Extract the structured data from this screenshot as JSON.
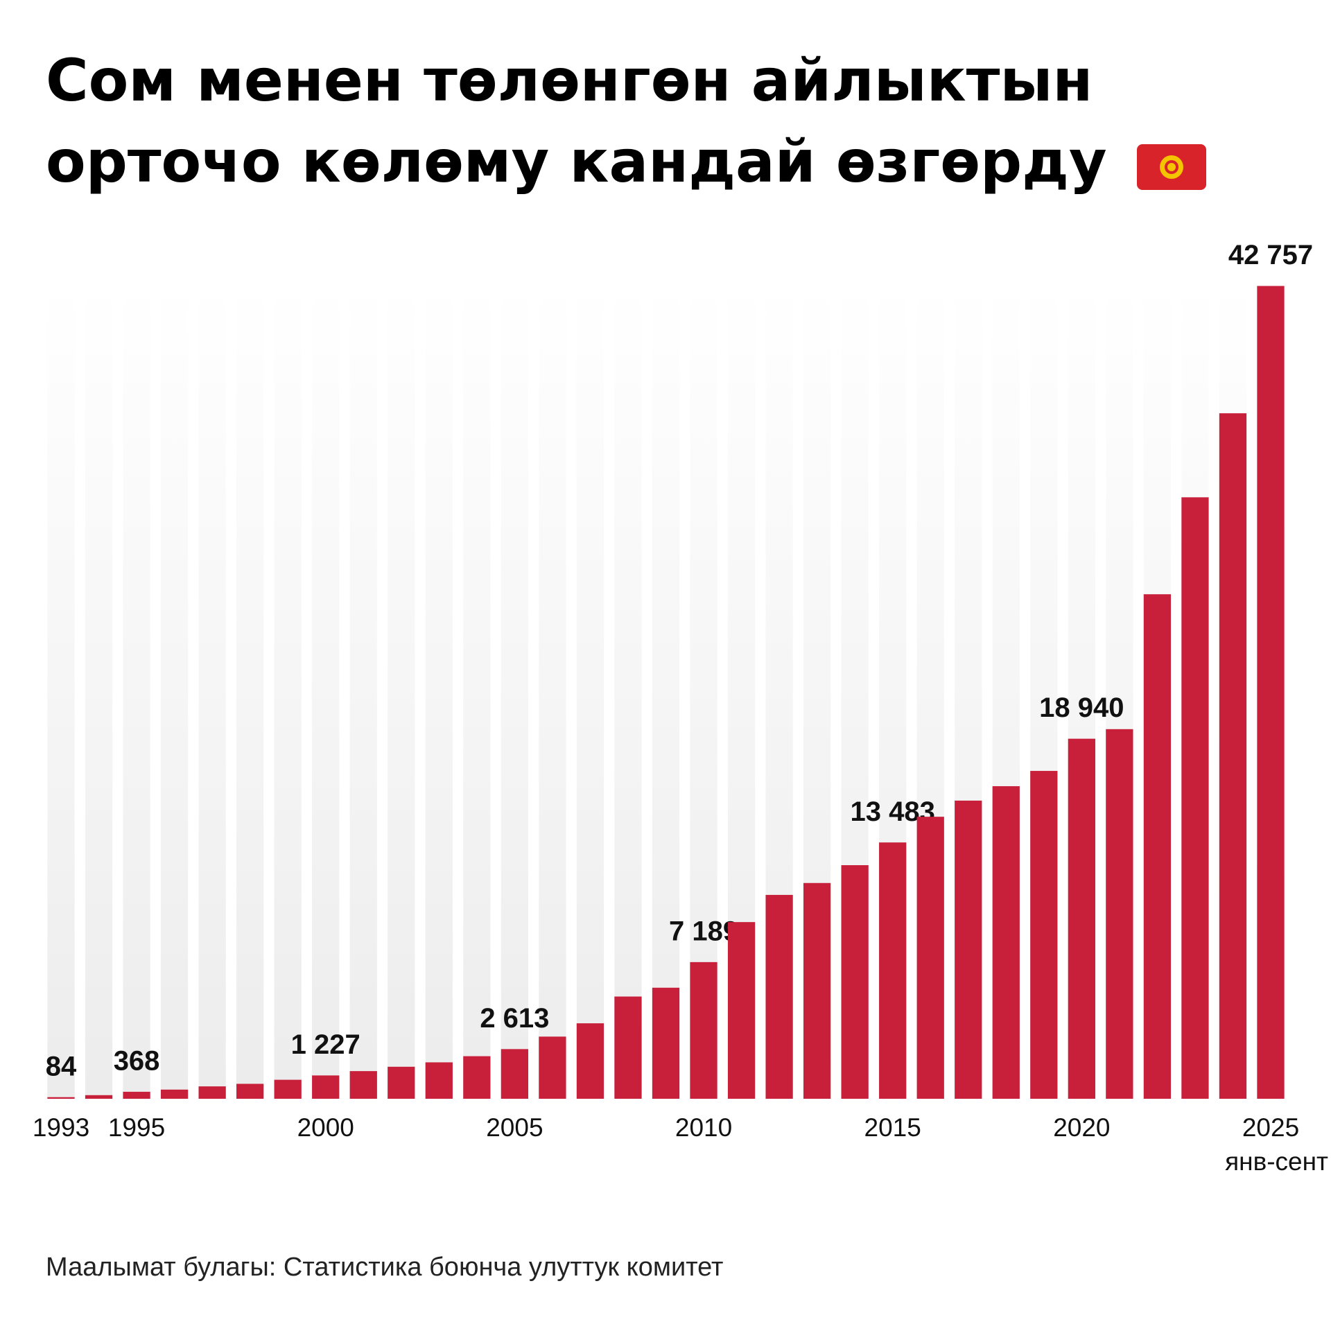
{
  "chart_data": {
    "type": "bar",
    "title": [
      "Сом менен төлөнгөн айлыктын",
      "орточо көлөму кандай өзгөрду"
    ],
    "categories": [
      "1993",
      null,
      "1995",
      null,
      null,
      null,
      null,
      "2000",
      null,
      null,
      null,
      null,
      "2005",
      null,
      null,
      null,
      null,
      "2010",
      null,
      null,
      null,
      null,
      "2015",
      null,
      null,
      null,
      null,
      "2020",
      null,
      null,
      null,
      null,
      "2025"
    ],
    "category_note": "янв-сент",
    "values": [
      84,
      190,
      368,
      482,
      652,
      786,
      999,
      1227,
      1455,
      1684,
      1916,
      2240,
      2613,
      3270,
      3970,
      5378,
      5842,
      7189,
      9294,
      10724,
      11350,
      12288,
      13483,
      14835,
      15684,
      16443,
      17247,
      18940,
      19443,
      26540,
      31640,
      36060,
      42757
    ],
    "value_labels": [
      "84",
      null,
      "368",
      null,
      null,
      null,
      null,
      "1 227",
      null,
      null,
      null,
      null,
      "2 613",
      null,
      null,
      null,
      null,
      "7 189",
      null,
      null,
      null,
      null,
      "13 483",
      null,
      null,
      null,
      null,
      "18 940",
      null,
      null,
      null,
      null,
      "42 757"
    ],
    "color": "#c8203a",
    "ylim": [
      0,
      45000
    ],
    "source": "Маалымат булагы: Статистика боюнча улуттук комитет"
  }
}
